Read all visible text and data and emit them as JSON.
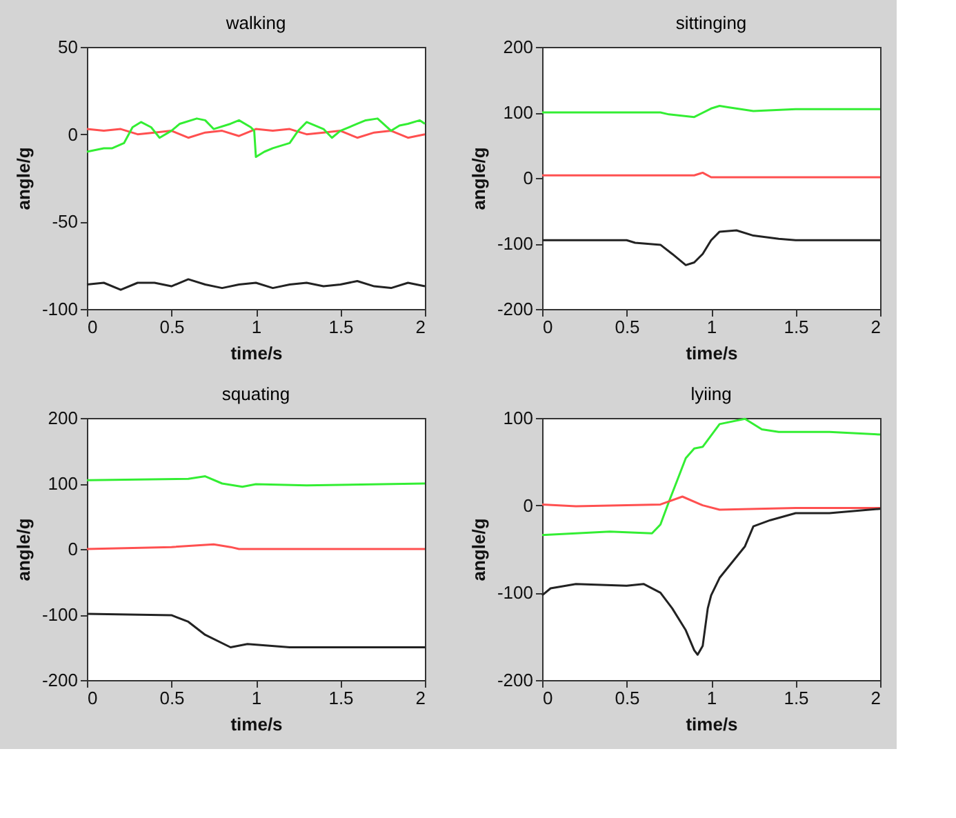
{
  "chart_data": [
    {
      "type": "line",
      "title": "walking",
      "xlabel": "time/s",
      "ylabel": "angle/g",
      "xlim": [
        0,
        2
      ],
      "xticks": [
        0,
        0.5,
        1,
        1.5,
        2
      ],
      "ylim": [
        -100,
        50
      ],
      "yticks": [
        -100,
        -50,
        0,
        50
      ],
      "grid": false,
      "series": [
        {
          "color": "#ff5050",
          "x": [
            0,
            0.1,
            0.2,
            0.3,
            0.4,
            0.5,
            0.6,
            0.7,
            0.8,
            0.9,
            1.0,
            1.1,
            1.2,
            1.3,
            1.4,
            1.5,
            1.6,
            1.7,
            1.8,
            1.9,
            2.0
          ],
          "values": [
            3,
            2,
            3,
            0,
            1,
            2,
            -2,
            1,
            2,
            -1,
            3,
            2,
            3,
            0,
            1,
            2,
            -2,
            1,
            2,
            -2,
            0
          ]
        },
        {
          "color": "#33ee33",
          "x": [
            0,
            0.1,
            0.15,
            0.22,
            0.27,
            0.32,
            0.38,
            0.43,
            0.5,
            0.55,
            0.65,
            0.7,
            0.75,
            0.85,
            0.9,
            0.97,
            0.99,
            1.0,
            1.05,
            1.1,
            1.2,
            1.25,
            1.3,
            1.4,
            1.45,
            1.5,
            1.6,
            1.65,
            1.72,
            1.8,
            1.85,
            1.9,
            1.97,
            2.0
          ],
          "values": [
            -10,
            -8,
            -8,
            -5,
            4,
            7,
            4,
            -2,
            2,
            6,
            9,
            8,
            3,
            6,
            8,
            4,
            2,
            -13,
            -10,
            -8,
            -5,
            2,
            7,
            3,
            -2,
            2,
            6,
            8,
            9,
            2,
            5,
            6,
            8,
            6
          ]
        },
        {
          "color": "#222222",
          "x": [
            0,
            0.1,
            0.2,
            0.3,
            0.4,
            0.5,
            0.6,
            0.7,
            0.8,
            0.9,
            1.0,
            1.1,
            1.2,
            1.3,
            1.4,
            1.5,
            1.6,
            1.7,
            1.8,
            1.9,
            2.0
          ],
          "values": [
            -86,
            -85,
            -89,
            -85,
            -85,
            -87,
            -83,
            -86,
            -88,
            -86,
            -85,
            -88,
            -86,
            -85,
            -87,
            -86,
            -84,
            -87,
            -88,
            -85,
            -87
          ]
        }
      ]
    },
    {
      "type": "line",
      "title": "sittinging",
      "xlabel": "time/s",
      "ylabel": "angle/g",
      "xlim": [
        0,
        2
      ],
      "xticks": [
        0,
        0.5,
        1,
        1.5,
        2
      ],
      "ylim": [
        -200,
        200
      ],
      "yticks": [
        -200,
        -100,
        0,
        100,
        200
      ],
      "grid": false,
      "series": [
        {
          "color": "#33ee33",
          "x": [
            0,
            0.7,
            0.75,
            0.9,
            1.0,
            1.05,
            1.1,
            1.25,
            1.5,
            2.0
          ],
          "values": [
            100,
            100,
            97,
            93,
            106,
            110,
            108,
            102,
            105,
            105
          ]
        },
        {
          "color": "#ff5050",
          "x": [
            0,
            0.9,
            0.95,
            1.0,
            2.0
          ],
          "values": [
            4,
            4,
            8,
            1,
            1
          ]
        },
        {
          "color": "#222222",
          "x": [
            0,
            0.5,
            0.55,
            0.7,
            0.77,
            0.85,
            0.9,
            0.95,
            1.0,
            1.05,
            1.15,
            1.25,
            1.4,
            1.5,
            2.0
          ],
          "values": [
            -95,
            -95,
            -99,
            -102,
            -116,
            -133,
            -129,
            -116,
            -95,
            -82,
            -80,
            -88,
            -93,
            -95,
            -95
          ]
        }
      ]
    },
    {
      "type": "line",
      "title": "squating",
      "xlabel": "time/s",
      "ylabel": "angle/g",
      "xlim": [
        0,
        2
      ],
      "xticks": [
        0,
        0.5,
        1,
        1.5,
        2
      ],
      "ylim": [
        -200,
        200
      ],
      "yticks": [
        -200,
        -100,
        0,
        100,
        200
      ],
      "grid": false,
      "series": [
        {
          "color": "#33ee33",
          "x": [
            0,
            0.6,
            0.7,
            0.8,
            0.92,
            1.0,
            1.3,
            2.0
          ],
          "values": [
            105,
            107,
            111,
            100,
            95,
            99,
            97,
            100
          ]
        },
        {
          "color": "#ff5050",
          "x": [
            0,
            0.5,
            0.75,
            0.85,
            0.9,
            2.0
          ],
          "values": [
            0,
            3,
            7,
            3,
            0,
            0
          ]
        },
        {
          "color": "#222222",
          "x": [
            0,
            0.5,
            0.6,
            0.7,
            0.85,
            0.95,
            1.2,
            2.0
          ],
          "values": [
            -99,
            -101,
            -111,
            -131,
            -150,
            -145,
            -150,
            -150
          ]
        }
      ]
    },
    {
      "type": "line",
      "title": "lyiing",
      "xlabel": "time/s",
      "ylabel": "angle/g",
      "xlim": [
        0,
        2
      ],
      "xticks": [
        0,
        0.5,
        1,
        1.5,
        2
      ],
      "ylim": [
        -200,
        100
      ],
      "yticks": [
        -200,
        -100,
        0,
        100
      ],
      "grid": false,
      "series": [
        {
          "color": "#33ee33",
          "x": [
            0,
            0.4,
            0.65,
            0.7,
            0.75,
            0.8,
            0.85,
            0.9,
            0.95,
            1.0,
            1.05,
            1.2,
            1.3,
            1.4,
            1.7,
            2.0
          ],
          "values": [
            -34,
            -30,
            -32,
            -22,
            4,
            29,
            54,
            65,
            67,
            80,
            93,
            99,
            87,
            84,
            84,
            81
          ]
        },
        {
          "color": "#ff5050",
          "x": [
            0,
            0.2,
            0.7,
            0.83,
            0.95,
            1.05,
            1.5,
            2.0
          ],
          "values": [
            1,
            -1,
            1,
            10,
            0,
            -5,
            -3,
            -3
          ]
        },
        {
          "color": "#222222",
          "x": [
            0,
            0.05,
            0.2,
            0.5,
            0.6,
            0.7,
            0.77,
            0.85,
            0.9,
            0.92,
            0.95,
            0.98,
            1.0,
            1.05,
            1.2,
            1.25,
            1.35,
            1.5,
            1.7,
            2.0
          ],
          "values": [
            -103,
            -95,
            -90,
            -92,
            -90,
            -100,
            -118,
            -143,
            -166,
            -171,
            -161,
            -118,
            -103,
            -83,
            -47,
            -24,
            -17,
            -9,
            -9,
            -4
          ]
        }
      ]
    }
  ]
}
